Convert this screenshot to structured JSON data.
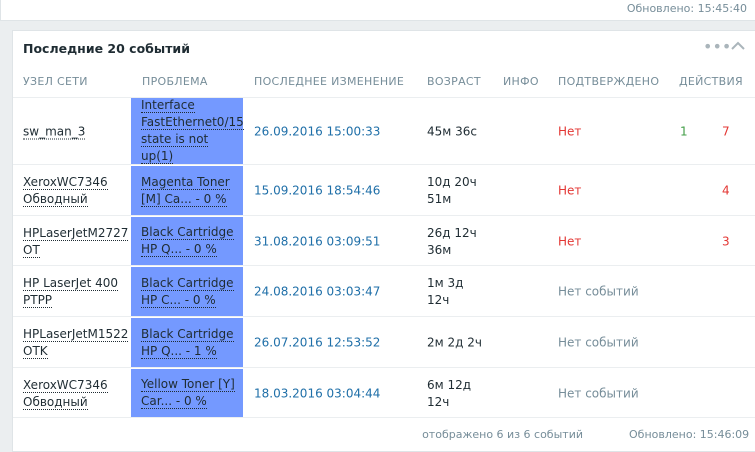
{
  "top_panel": {
    "updated": "Обновлено: 15:45:40"
  },
  "widget": {
    "title": "Последние 20 событий",
    "columns": [
      "УЗЕЛ СЕТИ",
      "ПРОБЛЕМА",
      "ПОСЛЕДНЕЕ ИЗМЕНЕНИЕ",
      "ВОЗРАСТ",
      "ИНФО",
      "ПОДТВЕРЖДЕНО",
      "ДЕЙСТВИЯ"
    ],
    "rows": [
      {
        "host": "sw_man_3",
        "problem": "Interface FastEthernet0/15 state is not up(1)",
        "last_change": "26.09.2016 15:00:33",
        "age": "45м 36с",
        "ack": "Нет",
        "actions": [
          "1",
          "7"
        ]
      },
      {
        "host": "XeroxWC7346 Обводный",
        "problem": "Magenta Toner [M] Ca... - 0 %",
        "last_change": "15.09.2016 18:54:46",
        "age": "10д 20ч 51м",
        "ack": "Нет",
        "actions": [
          "4"
        ]
      },
      {
        "host": "HPLaserJetM2727 OT",
        "problem": "Black Cartridge HP Q... - 0 %",
        "last_change": "31.08.2016 03:09:51",
        "age": "26д 12ч 36м",
        "ack": "Нет",
        "actions": [
          "3"
        ]
      },
      {
        "host": "HP LaserJet 400 PTPP",
        "problem": "Black Cartridge HP C... - 0 %",
        "last_change": "24.08.2016 03:03:47",
        "age": "1м 3д 12ч",
        "ack": "Нет событий",
        "actions": []
      },
      {
        "host": "HPLaserJetM1522 OTK",
        "problem": "Black Cartridge HP Q... - 1 %",
        "last_change": "26.07.2016 12:53:52",
        "age": "2м 2д 2ч",
        "ack": "Нет событий",
        "actions": []
      },
      {
        "host": "XeroxWC7346 Обводный",
        "problem": "Yellow Toner [Y] Car... - 0 %",
        "last_change": "18.03.2016 03:04:44",
        "age": "6м 12д 12ч",
        "ack": "Нет событий",
        "actions": []
      }
    ],
    "footer_count": "отображено 6 из 6 событий",
    "footer_updated": "Обновлено: 15:46:09"
  }
}
